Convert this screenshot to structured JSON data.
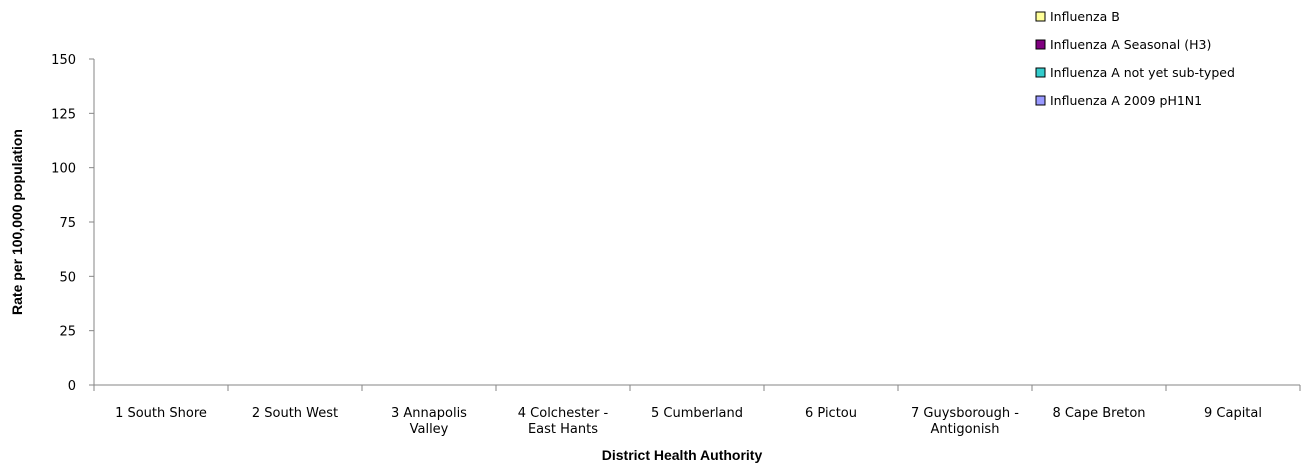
{
  "chart_data": {
    "type": "bar",
    "stacked": true,
    "title": "",
    "xlabel": "District Health Authority",
    "ylabel": "Rate per 100,000 population",
    "ylim": [
      0,
      150
    ],
    "yticks": [
      0,
      25,
      50,
      75,
      100,
      125,
      150
    ],
    "grid": false,
    "legend_position": "top-right",
    "categories": [
      [
        "1 South Shore"
      ],
      [
        "2 South West"
      ],
      [
        "3 Annapolis",
        "Valley"
      ],
      [
        "4 Colchester -",
        "East Hants"
      ],
      [
        "5 Cumberland"
      ],
      [
        "6 Pictou"
      ],
      [
        "7 Guysborough -",
        "Antigonish"
      ],
      [
        "8 Cape Breton"
      ],
      [
        "9 Capital"
      ]
    ],
    "series": [
      {
        "name": "Influenza A 2009 pH1N1",
        "color": "#9999ff",
        "values": [
          0,
          0,
          0,
          0,
          0,
          0,
          0,
          0,
          0
        ]
      },
      {
        "name": "Influenza A not yet sub-typed",
        "color": "#33cccc",
        "values": [
          0,
          0,
          0,
          0,
          0,
          0,
          0,
          0,
          0
        ]
      },
      {
        "name": "Influenza A Seasonal (H3)",
        "color": "#800080",
        "values": [
          0,
          0,
          0,
          0,
          0,
          0,
          0,
          0,
          0
        ]
      },
      {
        "name": "Influenza B",
        "color": "#ffff99",
        "values": [
          0,
          0,
          0,
          0,
          0,
          0,
          0,
          0,
          0
        ]
      }
    ],
    "legend_order": [
      "Influenza B",
      "Influenza A Seasonal (H3)",
      "Influenza A not yet sub-typed",
      "Influenza A 2009 pH1N1"
    ]
  }
}
